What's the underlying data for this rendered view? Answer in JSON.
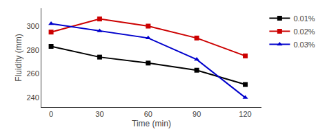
{
  "chart_data": {
    "type": "line",
    "xlabel": "Time (min)",
    "ylabel": "Fluidity (mm)",
    "x": [
      0,
      30,
      60,
      90,
      120
    ],
    "series": [
      {
        "name": "0.01%",
        "color": "#000000",
        "marker": "square",
        "values": [
          283,
          274,
          269,
          263,
          251
        ]
      },
      {
        "name": "0.02%",
        "color": "#cc0000",
        "marker": "square",
        "values": [
          295,
          306,
          300,
          290,
          275
        ]
      },
      {
        "name": "0.03%",
        "color": "#0000cc",
        "marker": "triangle-up",
        "values": [
          302,
          296,
          290,
          272,
          240
        ]
      }
    ],
    "xlim": [
      -6,
      130
    ],
    "ylim": [
      232,
      315
    ],
    "xticks": [
      0,
      30,
      60,
      90,
      120
    ],
    "yticks": [
      240,
      260,
      280,
      300
    ],
    "grid": false,
    "legend": "upper right"
  }
}
